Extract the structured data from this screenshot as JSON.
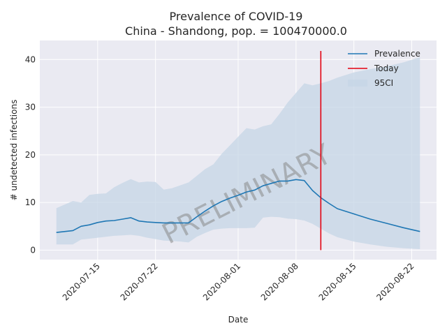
{
  "chart_data": {
    "type": "line",
    "title": "Prevalence of COVID-19",
    "subtitle": "China - Shandong, pop. = 100470000.0",
    "xlabel": "Date",
    "ylabel": "# undetected infections",
    "watermark": "PRELIMINARY",
    "xlim": [
      "2020-07-08",
      "2020-08-25"
    ],
    "ylim": [
      -2,
      44
    ],
    "x_ticks": [
      "2020-07-15",
      "2020-07-22",
      "2020-08-01",
      "2020-08-08",
      "2020-08-15",
      "2020-08-22"
    ],
    "y_ticks": [
      0,
      10,
      20,
      30,
      40
    ],
    "grid": true,
    "legend": {
      "position": "top-right",
      "entries": [
        "Prevalence",
        "Today",
        "95CI"
      ]
    },
    "colors": {
      "prevalence": "#1f77b4",
      "today": "#e3000f",
      "ci": "#c6d6e6",
      "background": "#eaeaf2",
      "grid": "#ffffff"
    },
    "today": "2020-08-11",
    "series": [
      {
        "name": "Prevalence",
        "x": [
          "2020-07-10",
          "2020-07-12",
          "2020-07-13",
          "2020-07-14",
          "2020-07-15",
          "2020-07-16",
          "2020-07-17",
          "2020-07-18",
          "2020-07-19",
          "2020-07-20",
          "2020-07-21",
          "2020-07-22",
          "2020-07-23",
          "2020-07-24",
          "2020-07-25",
          "2020-07-26",
          "2020-07-27",
          "2020-07-28",
          "2020-07-29",
          "2020-07-30",
          "2020-07-31",
          "2020-08-01",
          "2020-08-02",
          "2020-08-03",
          "2020-08-04",
          "2020-08-05",
          "2020-08-06",
          "2020-08-07",
          "2020-08-08",
          "2020-08-09",
          "2020-08-10",
          "2020-08-11",
          "2020-08-12",
          "2020-08-13",
          "2020-08-15",
          "2020-08-17",
          "2020-08-19",
          "2020-08-21",
          "2020-08-23"
        ],
        "values": [
          3.7,
          4.1,
          5.0,
          5.3,
          5.8,
          6.1,
          6.2,
          6.5,
          6.8,
          6.1,
          5.9,
          5.8,
          5.7,
          5.7,
          5.7,
          5.7,
          7.0,
          8.2,
          9.3,
          10.2,
          10.9,
          11.5,
          12.2,
          12.6,
          13.5,
          14.0,
          14.5,
          14.5,
          14.8,
          14.6,
          12.5,
          11.0,
          9.8,
          8.7,
          7.6,
          6.5,
          5.6,
          4.7,
          3.9
        ]
      },
      {
        "name": "95CI",
        "x": [
          "2020-07-10",
          "2020-07-12",
          "2020-07-13",
          "2020-07-14",
          "2020-07-15",
          "2020-07-16",
          "2020-07-17",
          "2020-07-18",
          "2020-07-19",
          "2020-07-20",
          "2020-07-21",
          "2020-07-22",
          "2020-07-23",
          "2020-07-24",
          "2020-07-25",
          "2020-07-26",
          "2020-07-27",
          "2020-07-28",
          "2020-07-29",
          "2020-07-30",
          "2020-07-31",
          "2020-08-01",
          "2020-08-02",
          "2020-08-03",
          "2020-08-04",
          "2020-08-05",
          "2020-08-06",
          "2020-08-07",
          "2020-08-08",
          "2020-08-09",
          "2020-08-10",
          "2020-08-11",
          "2020-08-12",
          "2020-08-13",
          "2020-08-15",
          "2020-08-17",
          "2020-08-19",
          "2020-08-21",
          "2020-08-23"
        ],
        "lower": [
          1.2,
          1.2,
          2.2,
          2.4,
          2.6,
          2.8,
          3.0,
          3.1,
          3.2,
          3.0,
          2.6,
          2.3,
          2.0,
          1.9,
          1.8,
          1.6,
          2.8,
          3.6,
          4.3,
          4.5,
          4.6,
          4.6,
          4.6,
          4.7,
          6.8,
          7.0,
          6.9,
          6.6,
          6.5,
          6.2,
          5.5,
          4.5,
          3.5,
          2.7,
          1.8,
          1.2,
          0.7,
          0.4,
          0.2
        ],
        "upper": [
          8.8,
          10.3,
          10.0,
          11.6,
          11.8,
          11.9,
          13.2,
          14.1,
          14.9,
          14.2,
          14.4,
          14.3,
          12.7,
          13.0,
          13.6,
          14.2,
          15.6,
          17.0,
          18.0,
          20.2,
          22.0,
          23.8,
          25.6,
          25.3,
          26.0,
          26.4,
          28.6,
          31.0,
          33.0,
          35.0,
          34.6,
          35.0,
          35.5,
          36.2,
          37.3,
          38.0,
          38.6,
          39.4,
          40.5
        ]
      }
    ]
  }
}
